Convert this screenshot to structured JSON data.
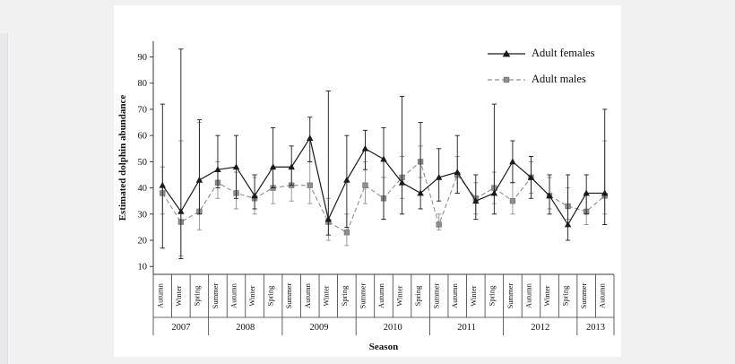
{
  "page": {
    "background": "#f1f1f2",
    "panel_background": "#ffffff"
  },
  "chart_data": {
    "type": "line",
    "title": "",
    "xlabel": "Season",
    "ylabel": "Estimated dolphin abundance",
    "ylim": [
      7,
      96
    ],
    "yticks": [
      10,
      20,
      30,
      40,
      50,
      60,
      70,
      80,
      90
    ],
    "grid": false,
    "legend_position": "top-right",
    "error_bars": true,
    "categories": [
      "Autumn",
      "Winter",
      "Spring",
      "Summer",
      "Autumn",
      "Winter",
      "Spring",
      "Summer",
      "Autumn",
      "Winter",
      "Spring",
      "Summer",
      "Autumn",
      "Winter",
      "Spring",
      "Summer",
      "Autumn",
      "Winter",
      "Spring",
      "Summer",
      "Autumn",
      "Winter",
      "Spring",
      "Summer",
      "Autumn"
    ],
    "year_groups": [
      {
        "label": "2007",
        "span": 3
      },
      {
        "label": "2008",
        "span": 4
      },
      {
        "label": "2009",
        "span": 4
      },
      {
        "label": "2010",
        "span": 4
      },
      {
        "label": "2011",
        "span": 4
      },
      {
        "label": "2012",
        "span": 4
      },
      {
        "label": "2013",
        "span": 2
      }
    ],
    "series": [
      {
        "name": "Adult females",
        "style": "solid",
        "marker": "triangle",
        "color": "#1a1a1a",
        "values": [
          41,
          31,
          43,
          47,
          48,
          37,
          48,
          48,
          59,
          28,
          43,
          55,
          51,
          42,
          38,
          44,
          46,
          35,
          38,
          50,
          44,
          37,
          26,
          38,
          38
        ],
        "err_low": [
          17,
          13,
          30,
          40,
          36,
          32,
          40,
          41,
          50,
          22,
          25,
          47,
          28,
          30,
          32,
          35,
          38,
          28,
          30,
          42,
          36,
          30,
          20,
          30,
          26
        ],
        "err_high": [
          72,
          93,
          66,
          60,
          60,
          45,
          63,
          56,
          67,
          77,
          60,
          62,
          63,
          75,
          65,
          55,
          60,
          45,
          72,
          58,
          52,
          45,
          45,
          45,
          70
        ]
      },
      {
        "name": "Adult males",
        "style": "dashed",
        "marker": "square",
        "color": "#8f8f8f",
        "values": [
          38,
          27,
          31,
          42,
          38,
          36,
          40,
          41,
          41,
          27,
          23,
          41,
          36,
          44,
          50,
          26,
          45,
          36,
          40,
          35,
          44,
          37,
          33,
          31,
          37
        ],
        "err_low": [
          30,
          14,
          24,
          36,
          32,
          30,
          34,
          35,
          34,
          20,
          18,
          34,
          28,
          36,
          44,
          24,
          38,
          30,
          34,
          30,
          38,
          32,
          28,
          26,
          30
        ],
        "err_high": [
          48,
          58,
          65,
          50,
          46,
          44,
          48,
          48,
          50,
          36,
          30,
          50,
          44,
          52,
          56,
          30,
          52,
          42,
          46,
          42,
          50,
          44,
          40,
          38,
          58
        ]
      }
    ]
  }
}
